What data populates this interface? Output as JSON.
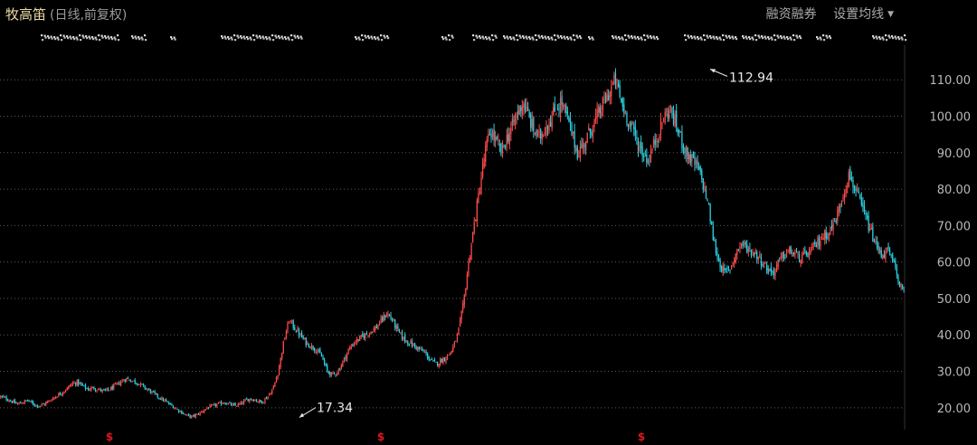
{
  "header": {
    "title": "牧高笛",
    "subtitle": "(日线,前复权)",
    "tools": [
      {
        "label": "融资融券"
      },
      {
        "label": "设置均线"
      }
    ]
  },
  "chart_data": {
    "type": "candlestick",
    "ylim": [
      14,
      117
    ],
    "yticks": [
      20,
      30,
      40,
      50,
      60,
      70,
      80,
      90,
      100,
      110
    ],
    "ytick_labels": [
      "20.00",
      "30.00",
      "40.00",
      "50.00",
      "60.00",
      "70.00",
      "80.00",
      "90.00",
      "100.00",
      "110.00"
    ],
    "grid": true,
    "colors": {
      "up": "#ff4b4b",
      "down": "#2ad2e2",
      "grid": "#5a5a5a",
      "marker": "#e0161e"
    },
    "annotations": [
      {
        "label": "112.94",
        "value": 112.94,
        "type": "high"
      },
      {
        "label": "17.34",
        "value": 17.34,
        "type": "low"
      }
    ],
    "event_markers": [
      {
        "label": "$"
      },
      {
        "label": "$"
      },
      {
        "label": "$"
      }
    ],
    "series": [
      {
        "close": [
          23.0,
          22.5,
          21.8,
          21.0,
          21.5,
          22.0,
          21.0,
          20.5,
          21.0,
          22.0,
          23.0,
          24.0,
          25.0,
          26.5,
          27.0,
          26.0,
          25.0,
          25.5,
          25.0,
          24.5,
          25.0,
          26.0,
          27.0,
          28.0,
          27.5,
          27.0,
          26.0,
          25.0,
          24.0,
          23.0,
          22.0,
          21.0,
          20.0,
          19.0,
          18.0,
          17.5,
          18.0,
          19.0,
          20.0,
          20.5,
          21.0,
          21.5,
          21.0,
          20.5,
          21.0,
          22.0,
          22.5,
          22.0,
          21.5,
          23.0,
          25.0,
          30.0,
          38.0,
          44.0,
          42.0,
          40.0,
          38.0,
          37.0,
          36.0,
          34.0,
          30.0,
          29.0,
          30.0,
          33.0,
          36.0,
          38.0,
          39.0,
          40.0,
          41.0,
          42.0,
          44.0,
          46.0,
          44.0,
          41.0,
          39.0,
          38.0,
          37.0,
          36.0,
          35.0,
          33.0,
          32.0,
          33.0,
          34.0,
          36.0,
          40.0,
          48.0,
          60.0,
          70.0,
          80.0,
          90.0,
          96.0,
          93.0,
          90.0,
          94.0,
          97.0,
          101.0,
          104.0,
          100.0,
          96.0,
          94.0,
          97.0,
          99.0,
          102.0,
          104.0,
          100.0,
          95.0,
          90.0,
          92.0,
          95.0,
          98.0,
          101.0,
          104.0,
          107.0,
          110.0,
          104.0,
          100.0,
          97.0,
          93.0,
          90.0,
          88.0,
          92.0,
          96.0,
          100.0,
          102.0,
          98.0,
          94.0,
          90.0,
          88.0,
          86.0,
          82.0,
          76.0,
          66.0,
          60.0,
          57.0,
          58.0,
          62.0,
          65.0,
          64.0,
          63.0,
          62.0,
          60.0,
          58.0,
          57.0,
          60.0,
          62.0,
          63.0,
          62.0,
          61.0,
          62.0,
          63.0,
          65.0,
          67.0,
          68.0,
          70.0,
          74.0,
          80.0,
          84.0,
          80.0,
          76.0,
          72.0,
          68.0,
          64.0,
          62.0,
          63.0,
          60.0,
          55.0,
          51.0
        ]
      }
    ]
  }
}
